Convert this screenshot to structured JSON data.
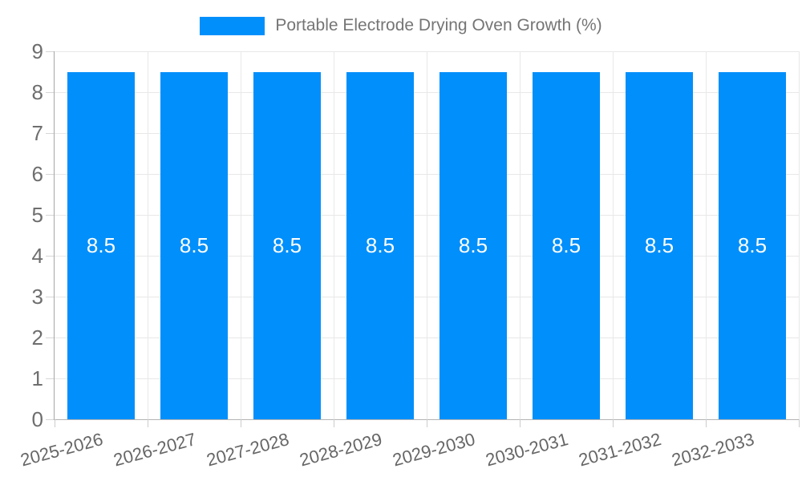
{
  "legend": {
    "label": "Portable Electrode Drying Oven Growth (%)",
    "swatch_color": "#008FFB"
  },
  "chart_data": {
    "type": "bar",
    "title": "Portable Electrode Drying Oven Growth (%)",
    "categories": [
      "2025-2026",
      "2026-2027",
      "2027-2028",
      "2028-2029",
      "2029-2030",
      "2030-2031",
      "2031-2032",
      "2032-2033"
    ],
    "values": [
      8.5,
      8.5,
      8.5,
      8.5,
      8.5,
      8.5,
      8.5,
      8.5
    ],
    "bar_labels": [
      "8.5",
      "8.5",
      "8.5",
      "8.5",
      "8.5",
      "8.5",
      "8.5",
      "8.5"
    ],
    "xlabel": "",
    "ylabel": "",
    "ylim": [
      0,
      9
    ],
    "yticks": [
      0,
      1,
      2,
      3,
      4,
      5,
      6,
      7,
      8,
      9
    ],
    "grid": true,
    "legend_position": "top",
    "bar_color": "#008FFB",
    "bar_label_color": "#ffffff",
    "axis_text_color": "#6e6e6e"
  }
}
